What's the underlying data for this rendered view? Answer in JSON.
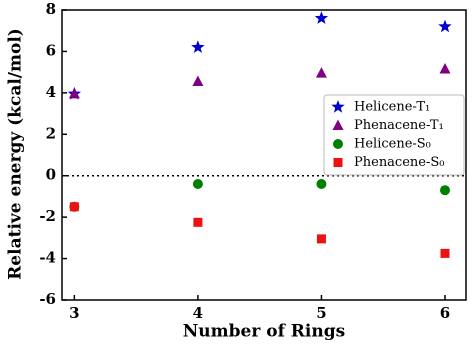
{
  "chart_data": {
    "type": "scatter",
    "x_label": "Number of Rings",
    "y_label": "Relative energy (kcal/mol)",
    "x": [
      3,
      4,
      5,
      6
    ],
    "series": [
      {
        "name": "Helicene-T₁",
        "color": "#0000cc",
        "marker": "star",
        "values": [
          3.95,
          6.2,
          7.6,
          7.2
        ]
      },
      {
        "name": "Phenacene-T₁",
        "color": "#800080",
        "marker": "triangle",
        "values": [
          3.95,
          4.55,
          4.95,
          5.15
        ]
      },
      {
        "name": "Helicene-S₀",
        "color": "#008000",
        "marker": "circle",
        "values": [
          -1.5,
          -0.4,
          -0.4,
          -0.7
        ]
      },
      {
        "name": "Phenacene-S₀",
        "color": "#ee1111",
        "marker": "square",
        "values": [
          -1.5,
          -2.25,
          -3.05,
          -3.75
        ]
      }
    ],
    "xlim": [
      2.9,
      6.17
    ],
    "xticks": [
      3,
      4,
      5,
      6
    ],
    "ylim": [
      -6,
      8
    ],
    "yticks": [
      -6,
      -4,
      -2,
      0,
      2,
      4,
      6,
      8
    ],
    "reference_line": 0,
    "legend": "center right"
  }
}
